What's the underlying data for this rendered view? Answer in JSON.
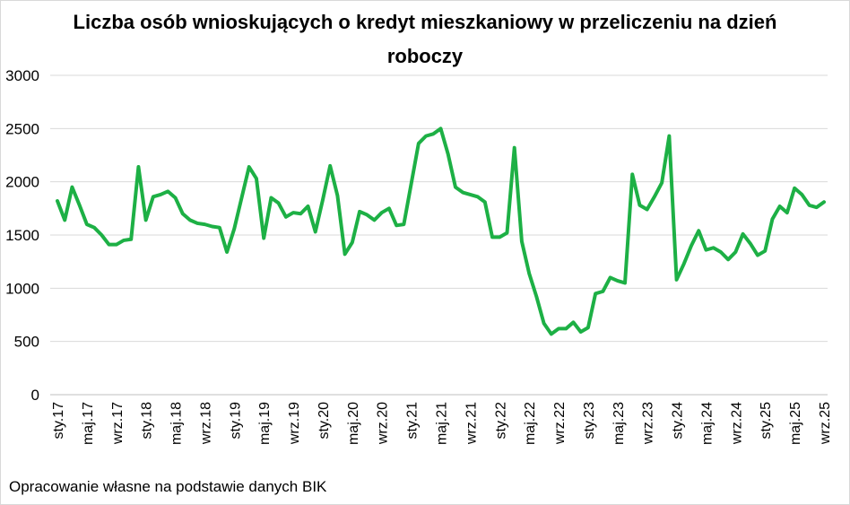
{
  "chart_data": {
    "type": "line",
    "title_line1": "Liczba osób wnioskujących o kredyt mieszkaniowy w przeliczeniu na dzień",
    "title_line2": "roboczy",
    "ylim": [
      0,
      3000
    ],
    "yticks": [
      0,
      500,
      1000,
      1500,
      2000,
      2500,
      3000
    ],
    "x_tick_labels": [
      {
        "index": 0,
        "label": "sty.17"
      },
      {
        "index": 4,
        "label": "maj.17"
      },
      {
        "index": 8,
        "label": "wrz.17"
      },
      {
        "index": 12,
        "label": "sty.18"
      },
      {
        "index": 16,
        "label": "maj.18"
      },
      {
        "index": 20,
        "label": "wrz.18"
      },
      {
        "index": 24,
        "label": "sty.19"
      },
      {
        "index": 28,
        "label": "maj.19"
      },
      {
        "index": 32,
        "label": "wrz.19"
      },
      {
        "index": 36,
        "label": "sty.20"
      },
      {
        "index": 40,
        "label": "maj.20"
      },
      {
        "index": 44,
        "label": "wrz.20"
      },
      {
        "index": 48,
        "label": "sty.21"
      },
      {
        "index": 52,
        "label": "maj.21"
      },
      {
        "index": 56,
        "label": "wrz.21"
      },
      {
        "index": 60,
        "label": "sty.22"
      },
      {
        "index": 64,
        "label": "maj.22"
      },
      {
        "index": 68,
        "label": "wrz.22"
      },
      {
        "index": 72,
        "label": "sty.23"
      },
      {
        "index": 76,
        "label": "maj.23"
      },
      {
        "index": 80,
        "label": "wrz.23"
      },
      {
        "index": 84,
        "label": "sty.24"
      },
      {
        "index": 88,
        "label": "maj.24"
      },
      {
        "index": 92,
        "label": "wrz.24"
      },
      {
        "index": 96,
        "label": "sty.25"
      },
      {
        "index": 100,
        "label": "maj.25"
      },
      {
        "index": 104,
        "label": "wrz.25"
      }
    ],
    "series": [
      {
        "color": "#1db045",
        "values": [
          1820,
          1640,
          1950,
          1780,
          1600,
          1570,
          1500,
          1410,
          1410,
          1450,
          1460,
          2140,
          1640,
          1860,
          1880,
          1910,
          1850,
          1700,
          1640,
          1610,
          1600,
          1580,
          1570,
          1340,
          1560,
          1850,
          2140,
          2030,
          1470,
          1850,
          1800,
          1670,
          1710,
          1700,
          1770,
          1530,
          1830,
          2150,
          1870,
          1320,
          1430,
          1720,
          1690,
          1640,
          1710,
          1750,
          1590,
          1600,
          1980,
          2360,
          2430,
          2450,
          2500,
          2260,
          1950,
          1900,
          1880,
          1860,
          1810,
          1480,
          1480,
          1520,
          2320,
          1440,
          1140,
          920,
          670,
          570,
          620,
          620,
          680,
          590,
          630,
          950,
          970,
          1100,
          1070,
          1050,
          2070,
          1780,
          1740,
          1860,
          1990,
          2430,
          1080,
          1230,
          1400,
          1540,
          1360,
          1380,
          1340,
          1270,
          1340,
          1510,
          1420,
          1310,
          1350,
          1650,
          1770,
          1710,
          1940,
          1880,
          1780,
          1760,
          1810
        ]
      }
    ]
  },
  "source_note": "Opracowanie własne na podstawie danych BIK"
}
